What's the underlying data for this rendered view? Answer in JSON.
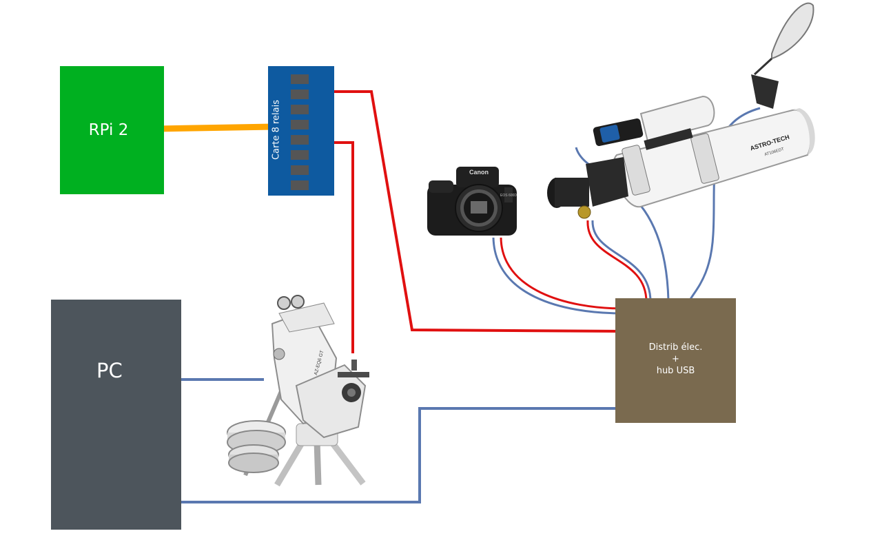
{
  "diagram": {
    "rpi": {
      "label": "RPi 2",
      "color": "#00b020"
    },
    "relay_board": {
      "label": "Carte 8 relais",
      "color": "#0e5aa0",
      "relay_count": 8
    },
    "pc": {
      "label": "PC",
      "color": "#4d555c"
    },
    "distributor": {
      "label": "Distrib élec.\n+\nhub USB",
      "color": "#7a6a4f"
    },
    "devices": {
      "camera": {
        "brand": "Canon",
        "model": "EOS 600D"
      },
      "mount": {
        "model": "AZ-EQ6 GT"
      },
      "telescope": {
        "brand": "ASTRO-TECH",
        "model": "AT106EDT"
      }
    },
    "wire_colors": {
      "gpio": "#ffa500",
      "power": "#e01010",
      "usb": "#5a78b0"
    }
  }
}
